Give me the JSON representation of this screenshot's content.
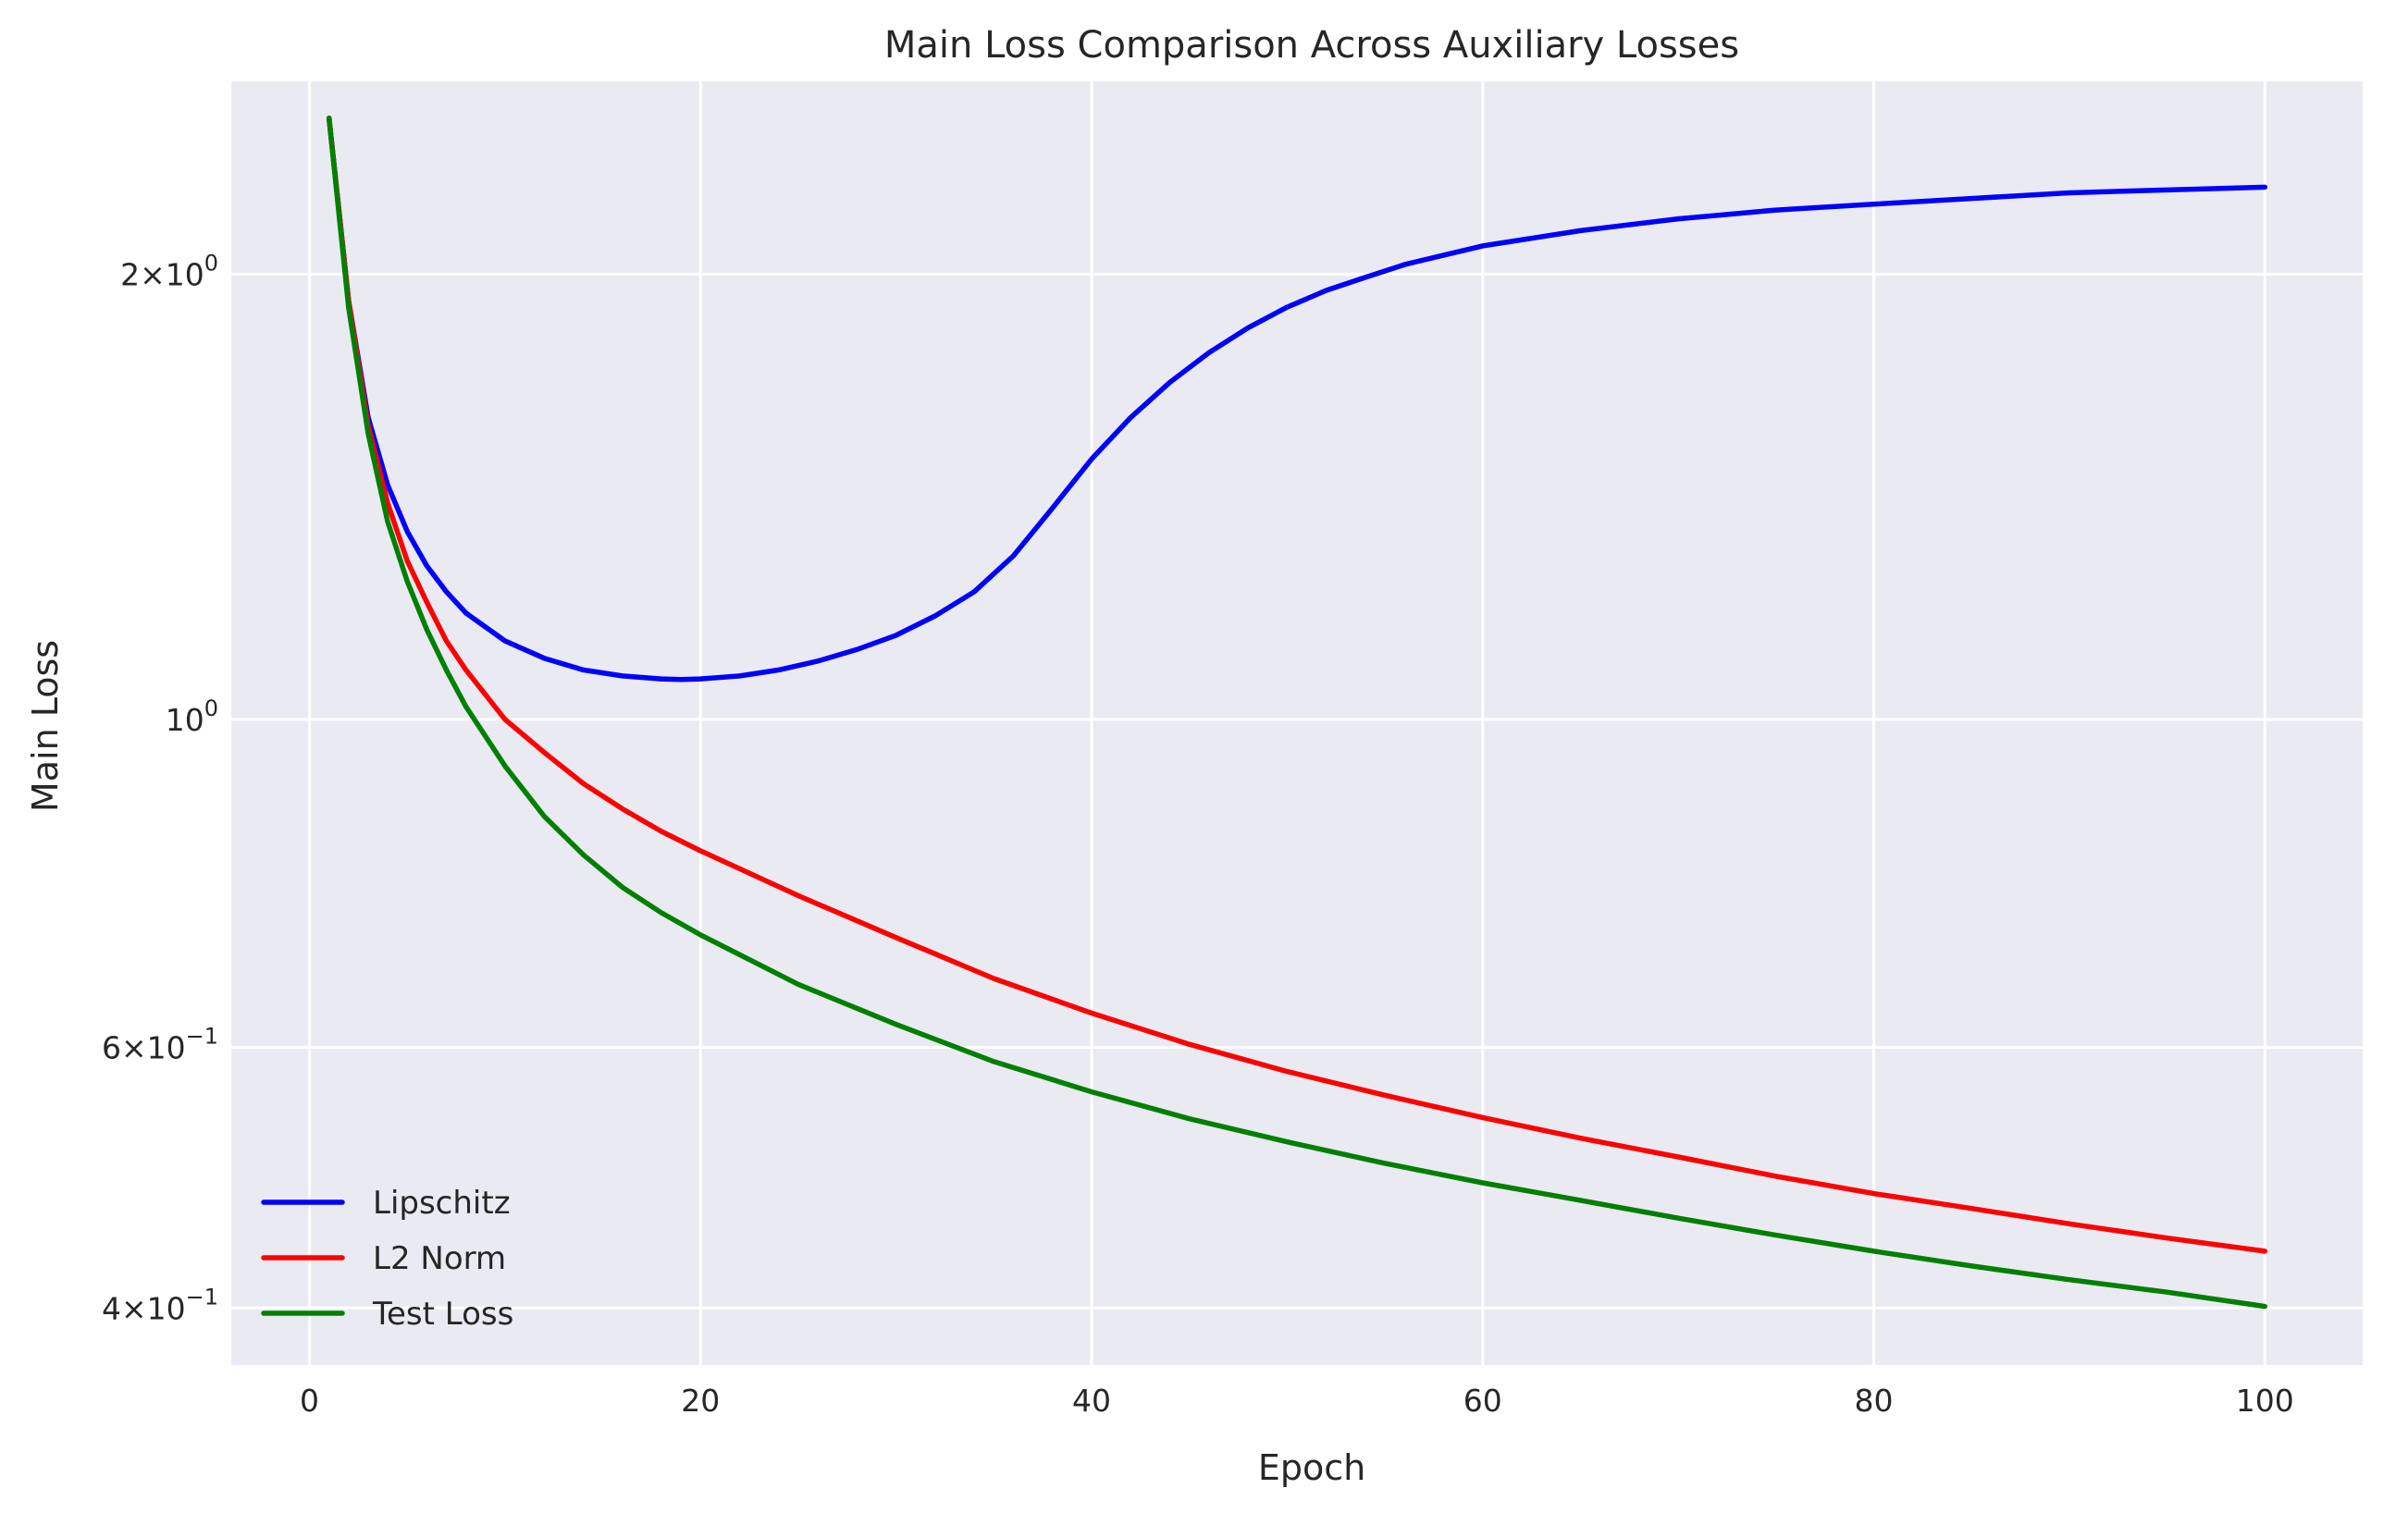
{
  "chart_data": {
    "type": "line",
    "title": "Main Loss Comparison Across Auxiliary Losses",
    "xlabel": "Epoch",
    "ylabel": "Main Loss",
    "xlim": [
      -4,
      105
    ],
    "ylim": [
      0.366,
      2.7
    ],
    "yscale": "log",
    "grid": true,
    "legend_position": "bottom-left",
    "background": "#eaeaf2",
    "x_ticks": [
      {
        "value": 0,
        "label": "0"
      },
      {
        "value": 20,
        "label": "20"
      },
      {
        "value": 40,
        "label": "40"
      },
      {
        "value": 60,
        "label": "60"
      },
      {
        "value": 80,
        "label": "80"
      },
      {
        "value": 100,
        "label": "100"
      }
    ],
    "y_ticks": [
      {
        "value": 2.0,
        "base": "2",
        "exp": "0"
      },
      {
        "value": 1.0,
        "base": "",
        "exp": "0"
      },
      {
        "value": 0.6,
        "base": "6",
        "exp": "−1"
      },
      {
        "value": 0.4,
        "base": "4",
        "exp": "−1"
      }
    ],
    "series": [
      {
        "name": "Lipschitz",
        "color": "#0000ff",
        "points": [
          [
            1,
            2.55
          ],
          [
            2,
            1.92
          ],
          [
            3,
            1.6
          ],
          [
            4,
            1.44
          ],
          [
            5,
            1.34
          ],
          [
            6,
            1.27
          ],
          [
            7,
            1.22
          ],
          [
            8,
            1.18
          ],
          [
            10,
            1.13
          ],
          [
            12,
            1.1
          ],
          [
            14,
            1.08
          ],
          [
            16,
            1.07
          ],
          [
            18,
            1.065
          ],
          [
            19,
            1.064
          ],
          [
            20,
            1.065
          ],
          [
            22,
            1.07
          ],
          [
            24,
            1.08
          ],
          [
            26,
            1.095
          ],
          [
            28,
            1.115
          ],
          [
            30,
            1.14
          ],
          [
            32,
            1.175
          ],
          [
            34,
            1.22
          ],
          [
            36,
            1.29
          ],
          [
            38,
            1.39
          ],
          [
            40,
            1.5
          ],
          [
            42,
            1.6
          ],
          [
            44,
            1.69
          ],
          [
            46,
            1.77
          ],
          [
            48,
            1.84
          ],
          [
            50,
            1.9
          ],
          [
            52,
            1.95
          ],
          [
            54,
            1.99
          ],
          [
            56,
            2.03
          ],
          [
            58,
            2.06
          ],
          [
            60,
            2.09
          ],
          [
            65,
            2.14
          ],
          [
            70,
            2.18
          ],
          [
            75,
            2.21
          ],
          [
            80,
            2.23
          ],
          [
            85,
            2.25
          ],
          [
            90,
            2.27
          ],
          [
            95,
            2.28
          ],
          [
            100,
            2.29
          ]
        ]
      },
      {
        "name": "L2 Norm",
        "color": "#ff0000",
        "points": [
          [
            1,
            2.55
          ],
          [
            2,
            1.92
          ],
          [
            3,
            1.58
          ],
          [
            4,
            1.4
          ],
          [
            5,
            1.28
          ],
          [
            6,
            1.2
          ],
          [
            7,
            1.13
          ],
          [
            8,
            1.08
          ],
          [
            10,
            1.0
          ],
          [
            12,
            0.95
          ],
          [
            14,
            0.905
          ],
          [
            16,
            0.87
          ],
          [
            18,
            0.84
          ],
          [
            20,
            0.815
          ],
          [
            25,
            0.76
          ],
          [
            30,
            0.712
          ],
          [
            35,
            0.668
          ],
          [
            40,
            0.633
          ],
          [
            45,
            0.603
          ],
          [
            50,
            0.578
          ],
          [
            55,
            0.557
          ],
          [
            60,
            0.538
          ],
          [
            65,
            0.521
          ],
          [
            70,
            0.506
          ],
          [
            75,
            0.491
          ],
          [
            80,
            0.478
          ],
          [
            85,
            0.467
          ],
          [
            90,
            0.456
          ],
          [
            95,
            0.446
          ],
          [
            100,
            0.437
          ]
        ]
      },
      {
        "name": "Test Loss",
        "color": "#008000",
        "points": [
          [
            1,
            2.55
          ],
          [
            2,
            1.9
          ],
          [
            3,
            1.56
          ],
          [
            4,
            1.36
          ],
          [
            5,
            1.24
          ],
          [
            6,
            1.15
          ],
          [
            7,
            1.08
          ],
          [
            8,
            1.02
          ],
          [
            10,
            0.93
          ],
          [
            12,
            0.86
          ],
          [
            14,
            0.81
          ],
          [
            16,
            0.77
          ],
          [
            18,
            0.74
          ],
          [
            20,
            0.715
          ],
          [
            25,
            0.662
          ],
          [
            30,
            0.622
          ],
          [
            35,
            0.587
          ],
          [
            40,
            0.56
          ],
          [
            45,
            0.537
          ],
          [
            50,
            0.518
          ],
          [
            55,
            0.501
          ],
          [
            60,
            0.486
          ],
          [
            65,
            0.473
          ],
          [
            70,
            0.46
          ],
          [
            75,
            0.448
          ],
          [
            80,
            0.437
          ],
          [
            85,
            0.427
          ],
          [
            90,
            0.418
          ],
          [
            95,
            0.41
          ],
          [
            100,
            0.401
          ]
        ]
      }
    ]
  }
}
